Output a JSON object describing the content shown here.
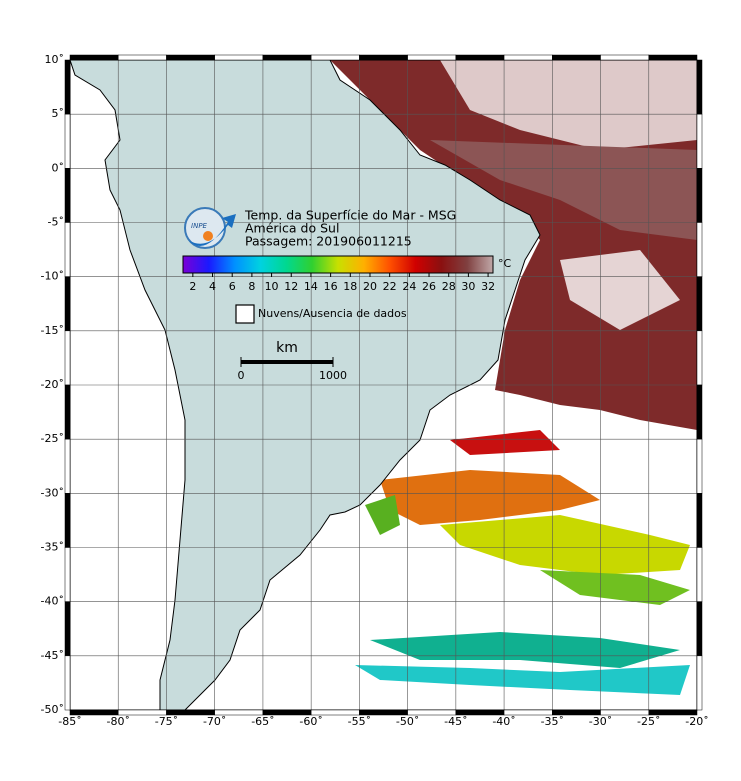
{
  "map": {
    "title_lines": [
      "Temp. da Superfície do Mar - MSG",
      "América do Sul",
      "Passagem: 201906011215"
    ],
    "logo": "INPE",
    "xlim": [
      -85,
      -20
    ],
    "ylim": [
      -50,
      10
    ],
    "xticks": [
      {
        "value": -85,
        "label": "-85˚"
      },
      {
        "value": -80,
        "label": "-80˚"
      },
      {
        "value": -75,
        "label": "-75˚"
      },
      {
        "value": -70,
        "label": "-70˚"
      },
      {
        "value": -65,
        "label": "-65˚"
      },
      {
        "value": -60,
        "label": "-60˚"
      },
      {
        "value": -55,
        "label": "-55˚"
      },
      {
        "value": -50,
        "label": "-50˚"
      },
      {
        "value": -45,
        "label": "-45˚"
      },
      {
        "value": -40,
        "label": "-40˚"
      },
      {
        "value": -35,
        "label": "-35˚"
      },
      {
        "value": -30,
        "label": "-30˚"
      },
      {
        "value": -25,
        "label": "-25˚"
      },
      {
        "value": -20,
        "label": "-20˚"
      }
    ],
    "yticks": [
      {
        "value": 10,
        "label": "10˚"
      },
      {
        "value": 5,
        "label": "5˚"
      },
      {
        "value": 0,
        "label": "0˚"
      },
      {
        "value": -5,
        "label": "-5˚"
      },
      {
        "value": -10,
        "label": "-10˚"
      },
      {
        "value": -15,
        "label": "-15˚"
      },
      {
        "value": -20,
        "label": "-20˚"
      },
      {
        "value": -25,
        "label": "-25˚"
      },
      {
        "value": -30,
        "label": "-30˚"
      },
      {
        "value": -35,
        "label": "-35˚"
      },
      {
        "value": -40,
        "label": "-40˚"
      },
      {
        "value": -45,
        "label": "-45˚"
      },
      {
        "value": -50,
        "label": "-50˚"
      }
    ],
    "colorbar": {
      "unit": "°C",
      "lim": [
        1,
        32.5
      ],
      "ticks": [
        2,
        4,
        6,
        8,
        10,
        12,
        14,
        16,
        18,
        20,
        22,
        24,
        26,
        28,
        30,
        32
      ],
      "colors": [
        "#7a00d6",
        "#1a1aff",
        "#0090ff",
        "#00d2e0",
        "#00d890",
        "#30d030",
        "#c8e000",
        "#ffb000",
        "#ff5000",
        "#d00000",
        "#8a1010",
        "#804040",
        "#c0a8a8"
      ]
    },
    "legend": "Nuvens/Ausencia de dados",
    "scale": {
      "unit": "km",
      "ticks": [
        0,
        1000
      ]
    }
  }
}
